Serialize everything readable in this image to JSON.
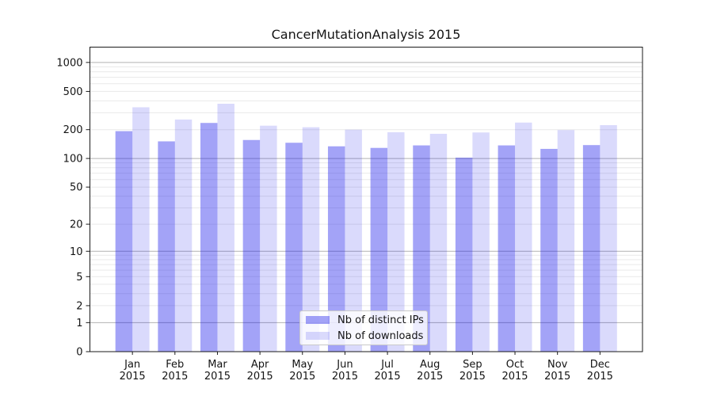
{
  "chart_data": {
    "type": "bar",
    "title": "CancerMutationAnalysis 2015",
    "xlabel": "",
    "ylabel": "",
    "yscale": "log1p",
    "grid": true,
    "legend_position": "lower center",
    "ylim": [
      0,
      1400
    ],
    "yticks": [
      1000,
      500,
      200,
      100,
      50,
      20,
      10,
      5,
      2,
      1,
      0
    ],
    "major_gridlines": [
      1,
      10,
      100,
      1000
    ],
    "categories": [
      "Jan 2015",
      "Feb 2015",
      "Mar 2015",
      "Apr 2015",
      "May 2015",
      "Jun 2015",
      "Jul 2015",
      "Aug 2015",
      "Sep 2015",
      "Oct 2015",
      "Nov 2015",
      "Dec 2015"
    ],
    "series": [
      {
        "name": "Nb of distinct IPs",
        "key": "distinct-ips",
        "color": "rgba(25,25,235,0.40)",
        "values": [
          193,
          151,
          235,
          156,
          146,
          134,
          129,
          137,
          102,
          137,
          126,
          138
        ]
      },
      {
        "name": "Nb of downloads",
        "key": "downloads",
        "color": "rgba(25,25,235,0.16)",
        "values": [
          342,
          255,
          372,
          220,
          212,
          200,
          188,
          181,
          187,
          237,
          198,
          223
        ]
      }
    ]
  },
  "colors": {
    "background": "#ffffff",
    "text": "#141414",
    "axis": "#1a1a1a",
    "grid_major": "#b2b2b2",
    "grid_minor": "#e9e9e9",
    "legend_bg": "rgba(255,255,255,0.8)",
    "legend_border": "#c9c9c9"
  }
}
